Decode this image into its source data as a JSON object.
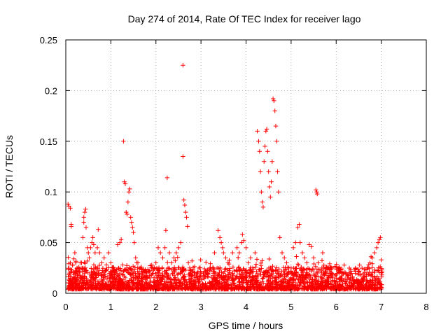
{
  "chart_data": {
    "type": "scatter",
    "title": "Day 274 of 2014, Rate Of TEC Index for receiver lago",
    "xlabel": "GPS time / hours",
    "ylabel": "ROTI / TECUs",
    "xlim": [
      0,
      8
    ],
    "ylim": [
      0,
      0.25
    ],
    "xticks": [
      0,
      1,
      2,
      3,
      4,
      5,
      6,
      7,
      8
    ],
    "xtick_labels": [
      "0",
      "1",
      "2",
      "3",
      "4",
      "5",
      "6",
      "7",
      "8"
    ],
    "yticks": [
      0,
      0.05,
      0.1,
      0.15,
      0.2,
      0.25
    ],
    "ytick_labels": [
      "0",
      "0.05",
      "0.1",
      "0.15",
      "0.2",
      "0.25"
    ],
    "grid": true,
    "marker": "+",
    "color": "#ff0000",
    "series": [
      {
        "name": "ROTI",
        "points": [
          [
            0.05,
            0.088
          ],
          [
            0.07,
            0.086
          ],
          [
            0.1,
            0.084
          ],
          [
            0.12,
            0.068
          ],
          [
            0.12,
            0.066
          ],
          [
            0.1,
            0.03
          ],
          [
            0.15,
            0.028
          ],
          [
            0.18,
            0.034
          ],
          [
            0.2,
            0.04
          ],
          [
            0.22,
            0.03
          ],
          [
            0.25,
            0.025
          ],
          [
            0.3,
            0.022
          ],
          [
            0.35,
            0.03
          ],
          [
            0.38,
            0.055
          ],
          [
            0.4,
            0.07
          ],
          [
            0.4,
            0.075
          ],
          [
            0.42,
            0.08
          ],
          [
            0.44,
            0.083
          ],
          [
            0.45,
            0.065
          ],
          [
            0.48,
            0.045
          ],
          [
            0.5,
            0.04
          ],
          [
            0.52,
            0.035
          ],
          [
            0.55,
            0.045
          ],
          [
            0.58,
            0.05
          ],
          [
            0.6,
            0.055
          ],
          [
            0.62,
            0.048
          ],
          [
            0.65,
            0.04
          ],
          [
            0.7,
            0.045
          ],
          [
            0.72,
            0.063
          ],
          [
            0.75,
            0.04
          ],
          [
            0.8,
            0.03
          ],
          [
            0.85,
            0.035
          ],
          [
            0.9,
            0.028
          ],
          [
            0.95,
            0.04
          ],
          [
            1.0,
            0.03
          ],
          [
            1.05,
            0.025
          ],
          [
            1.1,
            0.02
          ],
          [
            1.15,
            0.048
          ],
          [
            1.2,
            0.05
          ],
          [
            1.23,
            0.053
          ],
          [
            1.28,
            0.15
          ],
          [
            1.3,
            0.11
          ],
          [
            1.32,
            0.108
          ],
          [
            1.34,
            0.08
          ],
          [
            1.36,
            0.078
          ],
          [
            1.38,
            0.09
          ],
          [
            1.4,
            0.1
          ],
          [
            1.42,
            0.103
          ],
          [
            1.44,
            0.075
          ],
          [
            1.46,
            0.07
          ],
          [
            1.48,
            0.065
          ],
          [
            1.5,
            0.06
          ],
          [
            1.52,
            0.05
          ],
          [
            1.55,
            0.035
          ],
          [
            1.6,
            0.03
          ],
          [
            1.65,
            0.025
          ],
          [
            1.7,
            0.02
          ],
          [
            1.75,
            0.022
          ],
          [
            1.8,
            0.02
          ],
          [
            1.9,
            0.018
          ],
          [
            2.0,
            0.03
          ],
          [
            2.05,
            0.045
          ],
          [
            2.1,
            0.04
          ],
          [
            2.15,
            0.035
          ],
          [
            2.2,
            0.045
          ],
          [
            2.22,
            0.062
          ],
          [
            2.25,
            0.114
          ],
          [
            2.3,
            0.04
          ],
          [
            2.35,
            0.03
          ],
          [
            2.4,
            0.035
          ],
          [
            2.45,
            0.04
          ],
          [
            2.5,
            0.045
          ],
          [
            2.55,
            0.05
          ],
          [
            2.6,
            0.225
          ],
          [
            2.6,
            0.135
          ],
          [
            2.62,
            0.092
          ],
          [
            2.64,
            0.087
          ],
          [
            2.66,
            0.08
          ],
          [
            2.68,
            0.075
          ],
          [
            2.7,
            0.066
          ],
          [
            2.72,
            0.03
          ],
          [
            2.75,
            0.025
          ],
          [
            2.8,
            0.022
          ],
          [
            2.85,
            0.02
          ],
          [
            2.9,
            0.018
          ],
          [
            3.0,
            0.02
          ],
          [
            3.1,
            0.022
          ],
          [
            3.2,
            0.025
          ],
          [
            3.3,
            0.04
          ],
          [
            3.38,
            0.062
          ],
          [
            3.42,
            0.055
          ],
          [
            3.45,
            0.05
          ],
          [
            3.48,
            0.045
          ],
          [
            3.5,
            0.04
          ],
          [
            3.55,
            0.035
          ],
          [
            3.6,
            0.03
          ],
          [
            3.7,
            0.04
          ],
          [
            3.8,
            0.045
          ],
          [
            3.85,
            0.04
          ],
          [
            3.9,
            0.05
          ],
          [
            3.92,
            0.058
          ],
          [
            3.95,
            0.052
          ],
          [
            4.0,
            0.045
          ],
          [
            4.05,
            0.03
          ],
          [
            4.1,
            0.035
          ],
          [
            4.2,
            0.04
          ],
          [
            4.25,
            0.16
          ],
          [
            4.28,
            0.15
          ],
          [
            4.3,
            0.14
          ],
          [
            4.32,
            0.12
          ],
          [
            4.34,
            0.1
          ],
          [
            4.36,
            0.09
          ],
          [
            4.38,
            0.085
          ],
          [
            4.4,
            0.13
          ],
          [
            4.42,
            0.145
          ],
          [
            4.44,
            0.16
          ],
          [
            4.46,
            0.162
          ],
          [
            4.48,
            0.14
          ],
          [
            4.5,
            0.12
          ],
          [
            4.52,
            0.105
          ],
          [
            4.54,
            0.095
          ],
          [
            4.56,
            0.11
          ],
          [
            4.58,
            0.13
          ],
          [
            4.6,
            0.192
          ],
          [
            4.62,
            0.19
          ],
          [
            4.64,
            0.18
          ],
          [
            4.66,
            0.165
          ],
          [
            4.68,
            0.15
          ],
          [
            4.7,
            0.12
          ],
          [
            4.72,
            0.1
          ],
          [
            4.75,
            0.055
          ],
          [
            4.8,
            0.04
          ],
          [
            4.85,
            0.035
          ],
          [
            4.9,
            0.03
          ],
          [
            4.95,
            0.025
          ],
          [
            5.0,
            0.025
          ],
          [
            5.05,
            0.045
          ],
          [
            5.1,
            0.05
          ],
          [
            5.15,
            0.065
          ],
          [
            5.18,
            0.068
          ],
          [
            5.2,
            0.05
          ],
          [
            5.25,
            0.04
          ],
          [
            5.3,
            0.035
          ],
          [
            5.35,
            0.03
          ],
          [
            5.4,
            0.048
          ],
          [
            5.45,
            0.046
          ],
          [
            5.5,
            0.035
          ],
          [
            5.55,
            0.102
          ],
          [
            5.57,
            0.1
          ],
          [
            5.58,
            0.098
          ],
          [
            5.6,
            0.03
          ],
          [
            5.7,
            0.04
          ],
          [
            5.8,
            0.025
          ],
          [
            5.9,
            0.02
          ],
          [
            6.0,
            0.018
          ],
          [
            6.1,
            0.015
          ],
          [
            6.2,
            0.014
          ],
          [
            6.3,
            0.012
          ],
          [
            6.4,
            0.01
          ],
          [
            6.5,
            0.012
          ],
          [
            6.6,
            0.015
          ],
          [
            6.7,
            0.025
          ],
          [
            6.75,
            0.03
          ],
          [
            6.8,
            0.035
          ],
          [
            6.85,
            0.04
          ],
          [
            6.9,
            0.045
          ],
          [
            6.93,
            0.05
          ],
          [
            6.96,
            0.053
          ],
          [
            6.98,
            0.055
          ],
          [
            7.0,
            0.033
          ]
        ]
      }
    ]
  }
}
